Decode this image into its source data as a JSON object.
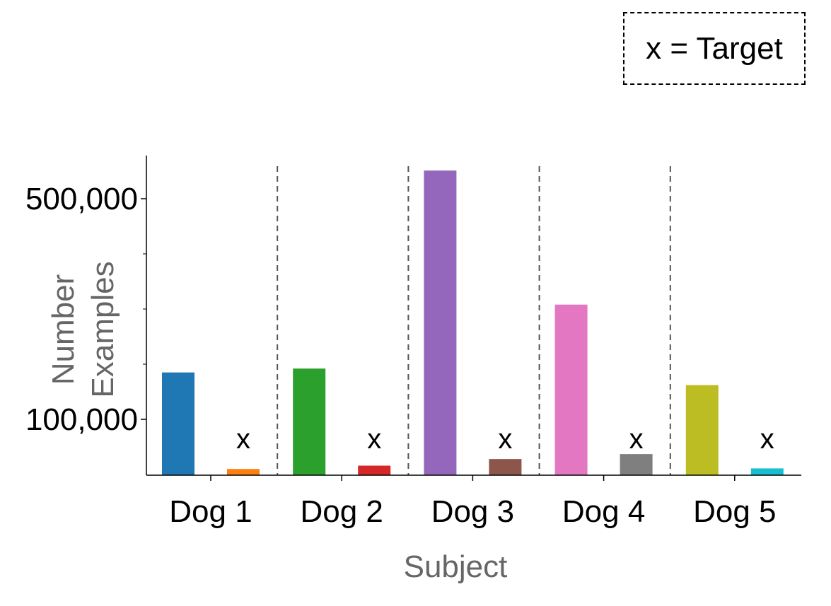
{
  "legend": {
    "text": "x = Target"
  },
  "chart_data": {
    "type": "bar",
    "xlabel": "Subject",
    "ylabel_lines": [
      "Number",
      "Examples"
    ],
    "ylim": [
      0,
      555000
    ],
    "yticks_major": [
      100000,
      500000
    ],
    "ytick_labels": [
      "100,000",
      "500,000"
    ],
    "yticks_minor": [
      200000,
      300000,
      400000
    ],
    "groups": [
      {
        "label": "Dog 1",
        "subject_value": 185000,
        "target_value": 10000,
        "subject_color": "#1f77b4",
        "target_color": "#ff7f0e",
        "target_marker": "x"
      },
      {
        "label": "Dog 2",
        "subject_value": 192000,
        "target_value": 16000,
        "subject_color": "#2ca02c",
        "target_color": "#d62728",
        "target_marker": "x"
      },
      {
        "label": "Dog 3",
        "subject_value": 551000,
        "target_value": 28000,
        "subject_color": "#9467bd",
        "target_color": "#8c564b",
        "target_marker": "x"
      },
      {
        "label": "Dog 4",
        "subject_value": 308000,
        "target_value": 37000,
        "subject_color": "#e377c2",
        "target_color": "#7f7f7f",
        "target_marker": "x"
      },
      {
        "label": "Dog 5",
        "subject_value": 162000,
        "target_value": 11000,
        "subject_color": "#bcbd22",
        "target_color": "#17becf",
        "target_marker": "x"
      }
    ],
    "separator_style": "dashed",
    "grid": false
  }
}
